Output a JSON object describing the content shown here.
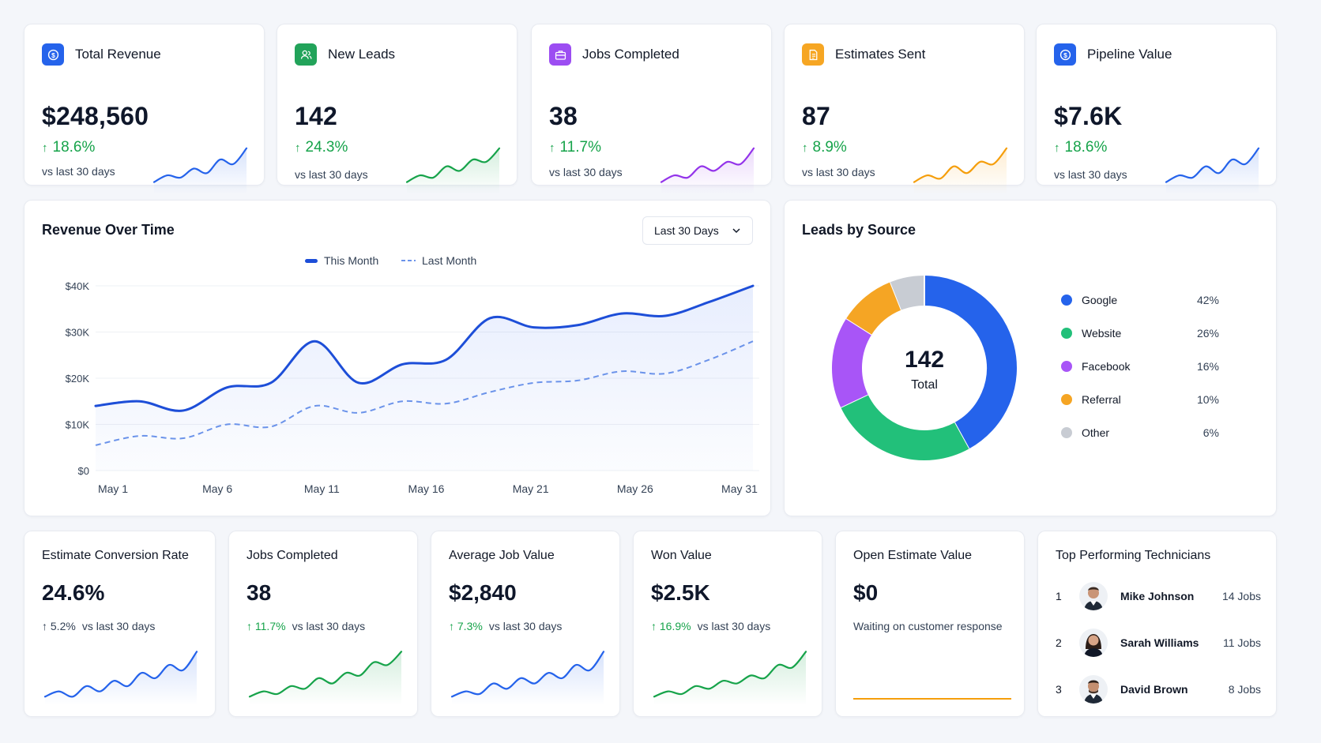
{
  "kpis": [
    {
      "title": "Total Revenue",
      "value": "$248,560",
      "change": "18.6%",
      "sub": "vs last 30 days",
      "icon": "dollar-icon",
      "color": "#2563eb",
      "trend": [
        0.2,
        0.35,
        0.3,
        0.5,
        0.4,
        0.7,
        0.6,
        0.95
      ]
    },
    {
      "title": "New Leads",
      "value": "142",
      "change": "24.3%",
      "sub": "vs last 30 days",
      "icon": "users-icon",
      "color": "#16a34a",
      "trend": [
        0.2,
        0.35,
        0.3,
        0.55,
        0.45,
        0.7,
        0.65,
        0.95
      ]
    },
    {
      "title": "Jobs Completed",
      "value": "38",
      "change": "11.7%",
      "sub": "vs last 30 days",
      "icon": "briefcase-icon",
      "color": "#9333ea",
      "trend": [
        0.2,
        0.35,
        0.3,
        0.55,
        0.45,
        0.65,
        0.6,
        0.95
      ]
    },
    {
      "title": "Estimates Sent",
      "value": "87",
      "change": "8.9%",
      "sub": "vs last 30 days",
      "icon": "document-icon",
      "color": "#f59e0b",
      "trend": [
        0.2,
        0.35,
        0.28,
        0.55,
        0.4,
        0.65,
        0.6,
        0.95
      ]
    },
    {
      "title": "Pipeline Value",
      "value": "$7.6K",
      "change": "18.6%",
      "sub": "vs last 30 days",
      "icon": "dollar-icon",
      "color": "#2563eb",
      "trend": [
        0.2,
        0.35,
        0.3,
        0.55,
        0.4,
        0.7,
        0.6,
        0.95
      ]
    }
  ],
  "revenue": {
    "title": "Revenue Over Time",
    "dropdown_label": "Last 30 Days",
    "legend_this": "This Month",
    "legend_last": "Last Month",
    "chart_data": {
      "type": "line",
      "x": [
        "May 1",
        "May 3",
        "May 5",
        "May 7",
        "May 9",
        "May 11",
        "May 13",
        "May 15",
        "May 17",
        "May 19",
        "May 21",
        "May 23",
        "May 25",
        "May 27",
        "May 29",
        "May 31"
      ],
      "x_ticks": [
        "May 1",
        "May 6",
        "May 11",
        "May 16",
        "May 21",
        "May 26",
        "May 31"
      ],
      "y_ticks": [
        "$0",
        "$10K",
        "$20K",
        "$30K",
        "$40K"
      ],
      "ylim": [
        0,
        40000
      ],
      "series": [
        {
          "name": "This Month",
          "color": "#1d4ed8",
          "values": [
            14000,
            15000,
            13000,
            18000,
            19000,
            28000,
            19000,
            23000,
            24000,
            33000,
            31000,
            31500,
            34000,
            33500,
            36500,
            40000
          ]
        },
        {
          "name": "Last Month",
          "color": "#6b93ea",
          "values": [
            5500,
            7500,
            7000,
            10000,
            9500,
            14000,
            12500,
            15000,
            14500,
            17000,
            19000,
            19500,
            21500,
            21000,
            24000,
            28000
          ]
        }
      ]
    }
  },
  "leads_source": {
    "title": "Leads by Source",
    "total": "142",
    "total_label": "Total",
    "chart_data": {
      "type": "pie",
      "slices": [
        {
          "name": "Google",
          "pct": "42%",
          "value": 42,
          "color": "#2563eb"
        },
        {
          "name": "Website",
          "pct": "26%",
          "value": 26,
          "color": "#22c07a"
        },
        {
          "name": "Facebook",
          "pct": "16%",
          "value": 16,
          "color": "#a855f7"
        },
        {
          "name": "Referral",
          "pct": "10%",
          "value": 10,
          "color": "#f5a524"
        },
        {
          "name": "Other",
          "pct": "6%",
          "value": 6,
          "color": "#c8ccd3"
        }
      ]
    }
  },
  "bottom": [
    {
      "title": "Estimate Conversion Rate",
      "value": "24.6%",
      "change": "5.2%",
      "sub": "vs last 30 days",
      "color": "#2563eb",
      "up_color": "neutral",
      "trend": [
        0.1,
        0.2,
        0.1,
        0.3,
        0.2,
        0.4,
        0.3,
        0.55,
        0.45,
        0.7,
        0.6,
        0.95
      ]
    },
    {
      "title": "Jobs Completed",
      "value": "38",
      "change": "11.7%",
      "sub": "vs last 30 days",
      "color": "#16a34a",
      "up_color": "green",
      "trend": [
        0.1,
        0.2,
        0.15,
        0.3,
        0.25,
        0.45,
        0.35,
        0.55,
        0.5,
        0.75,
        0.7,
        0.95
      ]
    },
    {
      "title": "Average Job Value",
      "value": "$2,840",
      "change": "7.3%",
      "sub": "vs last 30 days",
      "color": "#2563eb",
      "up_color": "green",
      "trend": [
        0.1,
        0.2,
        0.15,
        0.35,
        0.25,
        0.45,
        0.35,
        0.55,
        0.45,
        0.7,
        0.6,
        0.95
      ]
    },
    {
      "title": "Won Value",
      "value": "$2.5K",
      "change": "16.9%",
      "sub": "vs last 30 days",
      "color": "#16a34a",
      "up_color": "green",
      "trend": [
        0.1,
        0.2,
        0.15,
        0.3,
        0.25,
        0.4,
        0.35,
        0.5,
        0.45,
        0.7,
        0.65,
        0.95
      ]
    },
    {
      "title": "Open Estimate Value",
      "value": "$0",
      "sub": "Waiting on customer response",
      "color": "#f59e0b"
    }
  ],
  "technicians": {
    "title": "Top Performing Technicians",
    "rows": [
      {
        "rank": "1",
        "name": "Mike Johnson",
        "jobs": "14 Jobs"
      },
      {
        "rank": "2",
        "name": "Sarah Williams",
        "jobs": "11 Jobs"
      },
      {
        "rank": "3",
        "name": "David Brown",
        "jobs": "8 Jobs"
      }
    ]
  }
}
